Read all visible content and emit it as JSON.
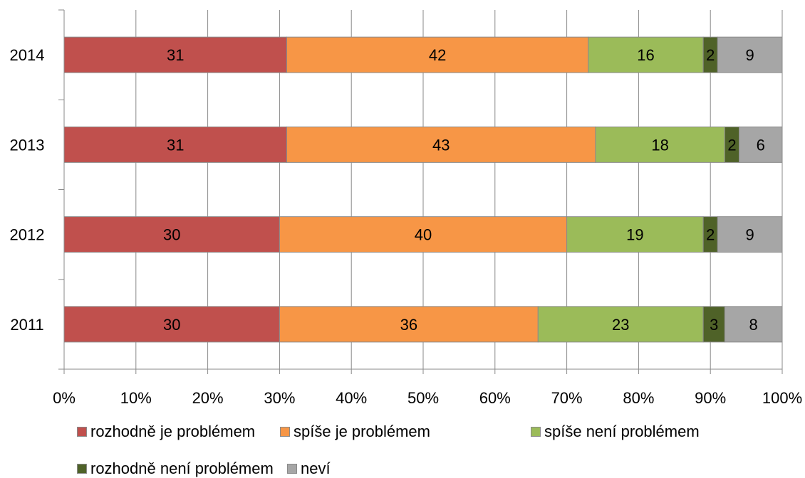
{
  "chart_data": {
    "type": "bar",
    "orientation": "horizontal",
    "stacked": "percent",
    "categories": [
      "2014",
      "2013",
      "2012",
      "2011"
    ],
    "series": [
      {
        "name": "rozhodně je problémem",
        "color": "#C0504D",
        "values": [
          31,
          31,
          30,
          30
        ]
      },
      {
        "name": "spíše je problémem",
        "color": "#F79646",
        "values": [
          42,
          43,
          40,
          36
        ]
      },
      {
        "name": "spíše není problémem",
        "color": "#9BBB59",
        "values": [
          16,
          18,
          19,
          23
        ]
      },
      {
        "name": "rozhodně není problémem",
        "color": "#4F6228",
        "values": [
          2,
          2,
          2,
          3
        ]
      },
      {
        "name": "neví",
        "color": "#A6A6A6",
        "values": [
          9,
          6,
          9,
          8
        ]
      }
    ],
    "xlim": [
      0,
      100
    ],
    "x_ticks": [
      "0%",
      "10%",
      "20%",
      "30%",
      "40%",
      "50%",
      "60%",
      "70%",
      "80%",
      "90%",
      "100%"
    ],
    "grid": "vertical",
    "legend": "bottom"
  }
}
